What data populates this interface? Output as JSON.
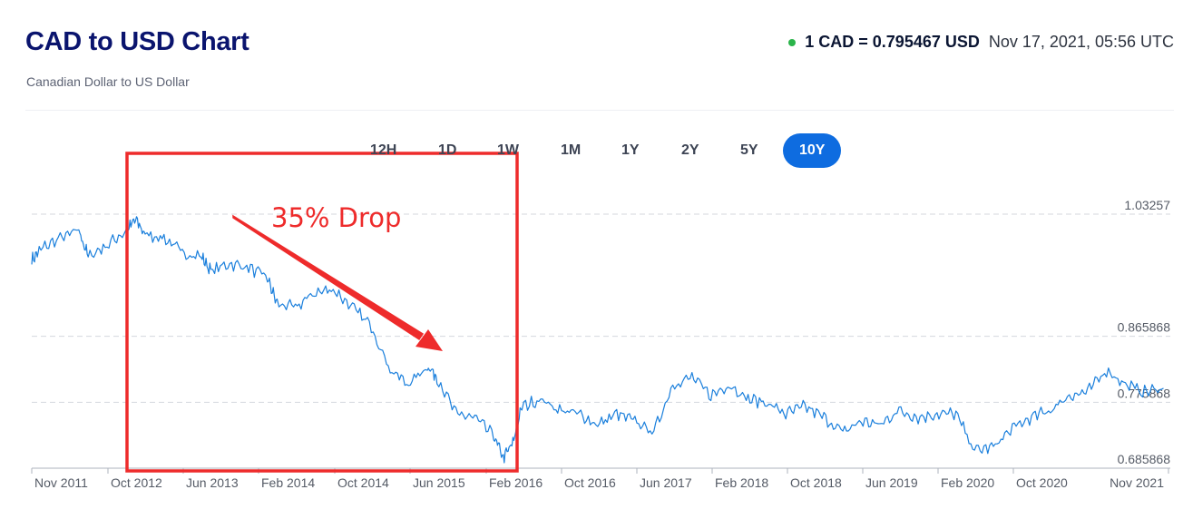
{
  "header": {
    "title": "CAD to USD Chart",
    "subtitle": "Canadian Dollar to US Dollar",
    "rate": "1 CAD = 0.795467 USD",
    "timestamp": "Nov 17, 2021, 05:56 UTC",
    "live_dot_color": "#2ab44a"
  },
  "range_tabs": [
    {
      "label": "12H",
      "active": false
    },
    {
      "label": "1D",
      "active": false
    },
    {
      "label": "1W",
      "active": false
    },
    {
      "label": "1M",
      "active": false
    },
    {
      "label": "1Y",
      "active": false
    },
    {
      "label": "2Y",
      "active": false
    },
    {
      "label": "5Y",
      "active": false
    },
    {
      "label": "10Y",
      "active": true
    }
  ],
  "colors": {
    "line": "#1a7fdc",
    "annotation": "#ee2b2b",
    "grid": "#d4d7de",
    "active_tab": "#0e6ce0"
  },
  "chart_data": {
    "type": "line",
    "x_tick_labels": [
      "Nov 2011",
      "Oct 2012",
      "Jun 2013",
      "Feb 2014",
      "Oct 2014",
      "Jun 2015",
      "Feb 2016",
      "Oct 2016",
      "Jun 2017",
      "Feb 2018",
      "Oct 2018",
      "Jun 2019",
      "Feb 2020",
      "Oct 2020",
      "Nov 2021"
    ],
    "y_gridlines": [
      1.03257,
      0.865868,
      0.775868,
      0.685868
    ],
    "y_tick_labels": [
      "1.03257",
      "0.865868",
      "0.775868",
      "0.685868"
    ],
    "ylim": [
      0.685868,
      1.03257
    ],
    "grid": "horizontal-dashed",
    "series": [
      {
        "x": [
          "2011-11",
          "2011-12",
          "2012-02",
          "2012-04",
          "2012-05",
          "2012-07",
          "2012-09",
          "2012-10",
          "2012-11",
          "2013-01",
          "2013-03",
          "2013-05",
          "2013-06",
          "2013-08",
          "2013-10",
          "2013-12",
          "2014-01",
          "2014-03",
          "2014-05",
          "2014-07",
          "2014-09",
          "2014-11",
          "2015-01",
          "2015-03",
          "2015-05",
          "2015-06",
          "2015-08",
          "2015-10",
          "2015-12",
          "2016-01",
          "2016-02",
          "2016-03",
          "2016-05",
          "2016-07",
          "2016-09",
          "2016-11",
          "2017-01",
          "2017-03",
          "2017-05",
          "2017-07",
          "2017-09",
          "2017-11",
          "2018-01",
          "2018-03",
          "2018-05",
          "2018-07",
          "2018-09",
          "2018-11",
          "2019-01",
          "2019-03",
          "2019-05",
          "2019-07",
          "2019-09",
          "2019-11",
          "2020-01",
          "2020-03",
          "2020-05",
          "2020-07",
          "2020-09",
          "2020-11",
          "2021-01",
          "2021-03",
          "2021-05",
          "2021-07",
          "2021-09",
          "2021-11"
        ],
        "y": [
          0.97,
          0.985,
          1.0,
          1.01,
          0.975,
          0.99,
          1.01,
          1.025,
          1.005,
          1.0,
          0.98,
          0.975,
          0.955,
          0.965,
          0.96,
          0.945,
          0.91,
          0.905,
          0.925,
          0.93,
          0.905,
          0.88,
          0.82,
          0.8,
          0.825,
          0.81,
          0.76,
          0.755,
          0.73,
          0.7,
          0.72,
          0.77,
          0.78,
          0.765,
          0.76,
          0.745,
          0.76,
          0.75,
          0.735,
          0.8,
          0.81,
          0.785,
          0.8,
          0.78,
          0.775,
          0.76,
          0.77,
          0.755,
          0.735,
          0.75,
          0.745,
          0.765,
          0.755,
          0.76,
          0.76,
          0.71,
          0.715,
          0.74,
          0.755,
          0.765,
          0.785,
          0.79,
          0.82,
          0.8,
          0.79,
          0.795
        ]
      }
    ],
    "annotations": [
      {
        "text": "35% Drop"
      }
    ]
  }
}
